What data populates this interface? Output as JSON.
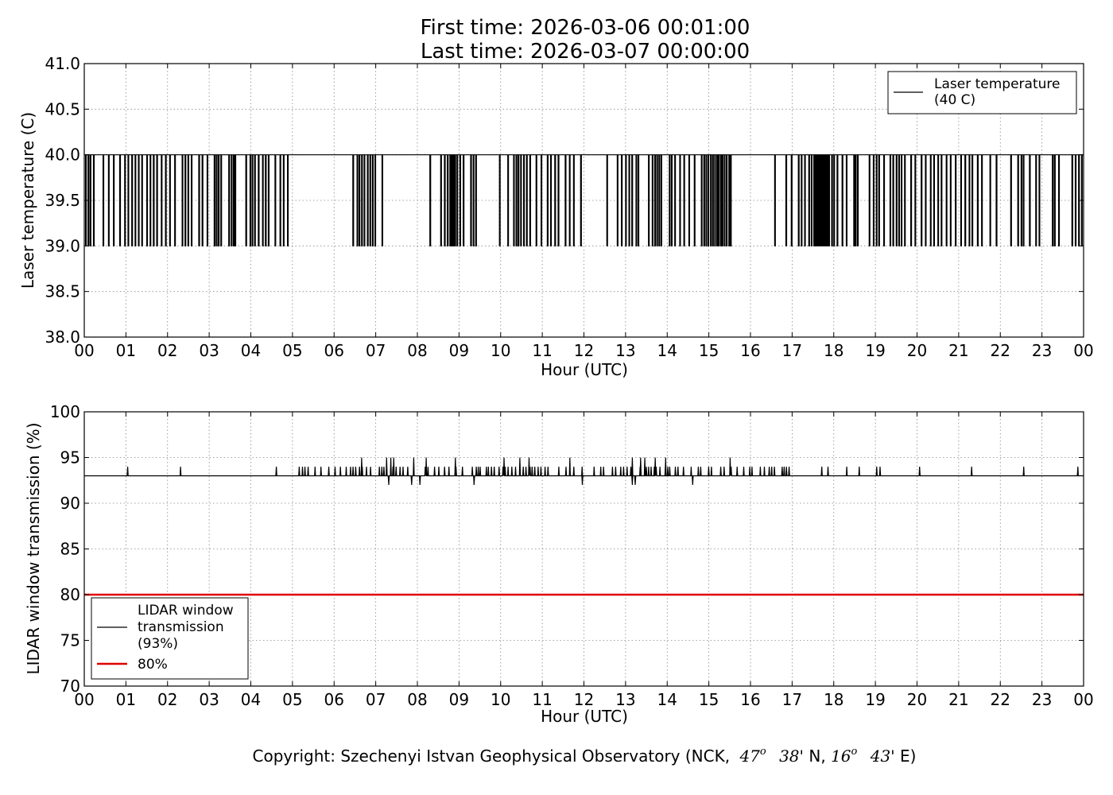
{
  "title_lines": [
    "First time: 2026-03-06 00:01:00",
    "Last time: 2026-03-07 00:00:00"
  ],
  "copyright": {
    "prefix": "Copyright: Szechenyi Istvan Geophysical Observatory (NCK,",
    "lat_deg": "47",
    "lat_min": "38'",
    "lat_hemi": "N,",
    "lon_deg": "16",
    "lon_min": "43'",
    "lon_hemi": "E)",
    "degree_symbol": "o"
  },
  "colors": {
    "series": "#000000",
    "threshold": "#e00000",
    "grid": "#888888"
  },
  "chart_data": [
    {
      "type": "line",
      "ylabel": "Laser temperature (C)",
      "xlabel": "Hour (UTC)",
      "x_unit": "hour",
      "xlim": [
        0,
        24
      ],
      "ylim": [
        38.0,
        41.0
      ],
      "x_tick_values": [
        0,
        1,
        2,
        3,
        4,
        5,
        6,
        7,
        8,
        9,
        10,
        11,
        12,
        13,
        14,
        15,
        16,
        17,
        18,
        19,
        20,
        21,
        22,
        23,
        24
      ],
      "x_tick_labels": [
        "00",
        "01",
        "02",
        "03",
        "04",
        "05",
        "06",
        "07",
        "08",
        "09",
        "10",
        "11",
        "12",
        "13",
        "14",
        "15",
        "16",
        "17",
        "18",
        "19",
        "20",
        "21",
        "22",
        "23",
        "00"
      ],
      "y_tick_values": [
        38.0,
        38.5,
        39.0,
        39.5,
        40.0,
        40.5,
        41.0
      ],
      "y_tick_labels": [
        "38.0",
        "38.5",
        "39.0",
        "39.5",
        "40.0",
        "40.5",
        "41.0"
      ],
      "grid": true,
      "legend_position": "top-right",
      "series": [
        {
          "name": "Laser temperature\n(40 C)",
          "baseline": 40.0,
          "drop_value": 39.0,
          "drops_hours": [
            0.03,
            0.09,
            0.14,
            0.22,
            0.45,
            0.58,
            0.7,
            0.85,
            0.97,
            1.05,
            1.14,
            1.22,
            1.3,
            1.38,
            1.5,
            1.58,
            1.66,
            1.74,
            1.85,
            1.95,
            2.05,
            2.17,
            2.35,
            2.42,
            2.49,
            2.57,
            2.75,
            2.83,
            2.95,
            3.12,
            3.17,
            3.22,
            3.28,
            3.47,
            3.53,
            3.58,
            3.62,
            3.88,
            3.98,
            4.03,
            4.09,
            4.18,
            4.28,
            4.35,
            4.42,
            4.58,
            4.7,
            4.78,
            4.88,
            6.45,
            6.55,
            6.6,
            6.66,
            6.72,
            6.8,
            6.86,
            6.92,
            6.98,
            7.15,
            8.3,
            8.56,
            8.65,
            8.72,
            8.78,
            8.82,
            8.86,
            8.9,
            8.95,
            9.02,
            9.1,
            9.28,
            9.34,
            9.4,
            9.97,
            10.17,
            10.31,
            10.37,
            10.42,
            10.48,
            10.55,
            10.62,
            10.7,
            10.85,
            10.97,
            11.12,
            11.2,
            11.3,
            11.38,
            11.55,
            11.65,
            11.75,
            11.92,
            12.55,
            12.8,
            12.9,
            13.0,
            13.08,
            13.15,
            13.25,
            13.3,
            13.55,
            13.64,
            13.7,
            13.75,
            13.8,
            13.85,
            14.05,
            14.1,
            14.18,
            14.3,
            14.4,
            14.52,
            14.65,
            14.82,
            14.88,
            14.93,
            14.98,
            15.04,
            15.09,
            15.14,
            15.19,
            15.23,
            15.28,
            15.32,
            15.37,
            15.42,
            15.48,
            15.52,
            16.58,
            16.85,
            16.98,
            17.15,
            17.22,
            17.3,
            17.4,
            17.46,
            17.52,
            17.56,
            17.6,
            17.64,
            17.68,
            17.72,
            17.76,
            17.8,
            17.84,
            17.88,
            17.95,
            18.0,
            18.08,
            18.2,
            18.3,
            18.48,
            18.52,
            18.57,
            18.85,
            18.95,
            19.02,
            19.08,
            19.2,
            19.35,
            19.42,
            19.5,
            19.56,
            19.62,
            19.7,
            19.85,
            19.95,
            20.1,
            20.2,
            20.32,
            20.4,
            20.5,
            20.58,
            20.7,
            20.8,
            20.92,
            21.05,
            21.15,
            21.25,
            21.32,
            21.45,
            21.55,
            21.75,
            21.9,
            22.25,
            22.42,
            22.5,
            22.55,
            22.7,
            22.85,
            22.93,
            23.25,
            23.3,
            23.4,
            23.72,
            23.8,
            23.88,
            23.95
          ]
        }
      ]
    },
    {
      "type": "line",
      "ylabel": "LIDAR window transmission (%)",
      "xlabel": "Hour (UTC)",
      "x_unit": "hour",
      "xlim": [
        0,
        24
      ],
      "ylim": [
        70,
        100
      ],
      "x_tick_values": [
        0,
        1,
        2,
        3,
        4,
        5,
        6,
        7,
        8,
        9,
        10,
        11,
        12,
        13,
        14,
        15,
        16,
        17,
        18,
        19,
        20,
        21,
        22,
        23,
        24
      ],
      "x_tick_labels": [
        "00",
        "01",
        "02",
        "03",
        "04",
        "05",
        "06",
        "07",
        "08",
        "09",
        "10",
        "11",
        "12",
        "13",
        "14",
        "15",
        "16",
        "17",
        "18",
        "19",
        "20",
        "21",
        "22",
        "23",
        "00"
      ],
      "y_tick_values": [
        70,
        75,
        80,
        85,
        90,
        95,
        100
      ],
      "y_tick_labels": [
        "70",
        "75",
        "80",
        "85",
        "90",
        "95",
        "100"
      ],
      "grid": true,
      "legend_position": "bottom-left",
      "series": [
        {
          "name": "LIDAR window\ntransmission\n(93%)",
          "baseline": 93,
          "spikes": [
            {
              "x": 1.03,
              "y": 94
            },
            {
              "x": 2.3,
              "y": 94
            },
            {
              "x": 4.6,
              "y": 94
            },
            {
              "x": 7.3,
              "y": 92
            },
            {
              "x": 7.85,
              "y": 92
            },
            {
              "x": 8.05,
              "y": 92
            },
            {
              "x": 9.35,
              "y": 92
            },
            {
              "x": 11.95,
              "y": 92
            },
            {
              "x": 13.15,
              "y": 92
            },
            {
              "x": 13.22,
              "y": 92
            },
            {
              "x": 14.6,
              "y": 92
            },
            {
              "x": 17.7,
              "y": 94
            },
            {
              "x": 17.85,
              "y": 94
            },
            {
              "x": 18.3,
              "y": 94
            },
            {
              "x": 18.6,
              "y": 94
            },
            {
              "x": 19.02,
              "y": 94
            },
            {
              "x": 19.1,
              "y": 94
            },
            {
              "x": 20.05,
              "y": 94
            },
            {
              "x": 21.3,
              "y": 94
            },
            {
              "x": 22.55,
              "y": 94
            },
            {
              "x": 23.85,
              "y": 94
            }
          ],
          "active_period": [
            5.15,
            17.0
          ],
          "active_level": 94,
          "active_peaks": [
            {
              "x": 6.65,
              "y": 95
            },
            {
              "x": 7.25,
              "y": 95
            },
            {
              "x": 7.35,
              "y": 95
            },
            {
              "x": 7.42,
              "y": 95
            },
            {
              "x": 7.9,
              "y": 95
            },
            {
              "x": 8.2,
              "y": 95
            },
            {
              "x": 8.9,
              "y": 95
            },
            {
              "x": 10.07,
              "y": 95
            },
            {
              "x": 10.45,
              "y": 95
            },
            {
              "x": 10.67,
              "y": 95
            },
            {
              "x": 11.65,
              "y": 95
            },
            {
              "x": 13.15,
              "y": 95
            },
            {
              "x": 13.35,
              "y": 95
            },
            {
              "x": 13.45,
              "y": 95
            },
            {
              "x": 13.7,
              "y": 95
            },
            {
              "x": 13.95,
              "y": 95
            },
            {
              "x": 15.5,
              "y": 95
            }
          ]
        },
        {
          "name": "80%",
          "constant": 80
        }
      ]
    }
  ]
}
